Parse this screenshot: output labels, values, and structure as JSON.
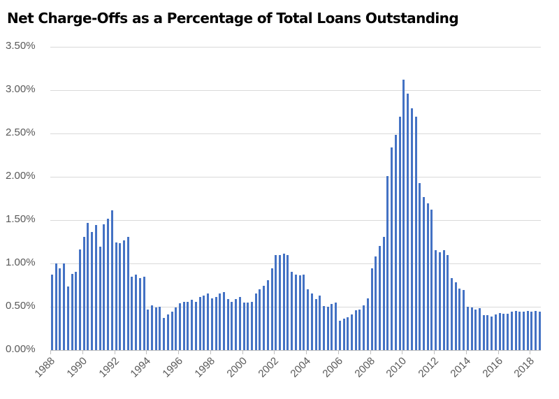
{
  "chart_data": {
    "type": "bar",
    "title": "Net Charge-Offs as a Percentage of Total Loans Outstanding",
    "xlabel": "",
    "ylabel": "",
    "ylim": [
      0,
      3.5
    ],
    "y_ticks": [
      "0.00%",
      "0.50%",
      "1.00%",
      "1.50%",
      "2.00%",
      "2.50%",
      "3.00%",
      "3.50%"
    ],
    "x_tick_labels": [
      "1988",
      "1990",
      "1992",
      "1994",
      "1996",
      "1998",
      "2000",
      "2002",
      "2004",
      "2006",
      "2008",
      "2010",
      "2012",
      "2014",
      "2016",
      "2018"
    ],
    "grid": true,
    "legend": null,
    "bar_color": "#4472C4",
    "frequency": "quarterly",
    "start": "1988Q1",
    "end": "2018Q3",
    "series": [
      {
        "name": "Net Charge-Offs (%)",
        "values": [
          0.87,
          1.0,
          0.94,
          1.0,
          0.73,
          0.88,
          0.9,
          1.16,
          1.31,
          1.47,
          1.36,
          1.44,
          1.19,
          1.45,
          1.52,
          1.61,
          1.24,
          1.23,
          1.27,
          1.31,
          0.85,
          0.87,
          0.83,
          0.85,
          0.47,
          0.52,
          0.49,
          0.5,
          0.37,
          0.41,
          0.44,
          0.49,
          0.54,
          0.56,
          0.56,
          0.58,
          0.56,
          0.61,
          0.63,
          0.65,
          0.6,
          0.61,
          0.65,
          0.67,
          0.59,
          0.56,
          0.59,
          0.61,
          0.55,
          0.55,
          0.56,
          0.65,
          0.7,
          0.74,
          0.81,
          0.94,
          1.1,
          1.1,
          1.11,
          1.1,
          0.9,
          0.87,
          0.86,
          0.87,
          0.7,
          0.65,
          0.59,
          0.63,
          0.51,
          0.5,
          0.53,
          0.55,
          0.34,
          0.36,
          0.38,
          0.41,
          0.46,
          0.47,
          0.52,
          0.6,
          0.94,
          1.08,
          1.2,
          1.31,
          2.01,
          2.34,
          2.48,
          2.69,
          3.12,
          2.96,
          2.79,
          2.69,
          1.93,
          1.77,
          1.69,
          1.62,
          1.15,
          1.13,
          1.15,
          1.1,
          0.83,
          0.78,
          0.71,
          0.69,
          0.5,
          0.49,
          0.47,
          0.48,
          0.4,
          0.4,
          0.39,
          0.41,
          0.43,
          0.42,
          0.42,
          0.44,
          0.45,
          0.44,
          0.44,
          0.45,
          0.44,
          0.45,
          0.44
        ]
      }
    ]
  }
}
